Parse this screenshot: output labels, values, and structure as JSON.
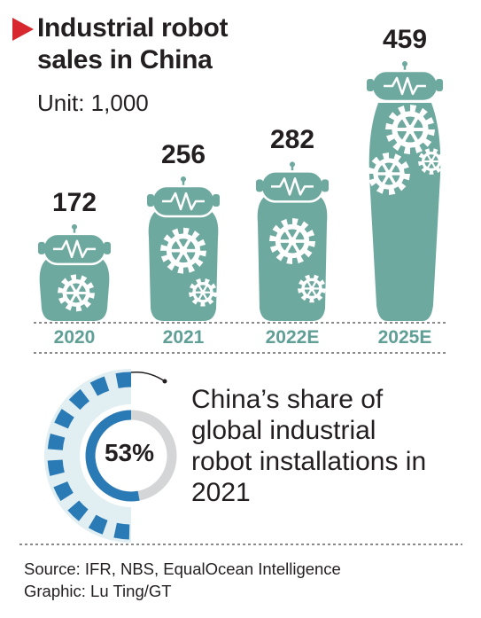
{
  "header": {
    "title_line1": "Industrial robot",
    "title_line2": "sales in China",
    "unit": "Unit: 1,000"
  },
  "chart_data": {
    "type": "bar",
    "title": "Industrial robot sales in China",
    "unit": "Unit: 1,000",
    "categories": [
      "2020",
      "2021",
      "2022E",
      "2025E"
    ],
    "values": [
      172,
      256,
      282,
      459
    ],
    "value_labels": [
      "172",
      "256",
      "282",
      "459"
    ],
    "ylim": [
      0,
      459
    ],
    "grid": false,
    "legend": "none"
  },
  "share": {
    "percent": 53,
    "percent_label": "53%",
    "line1": "China’s share of",
    "line2": "global industrial",
    "line3": "robot installations in",
    "line4": "2021"
  },
  "footer": {
    "source": "Source: IFR, NBS, EqualOcean Intelligence",
    "graphic": "Graphic: Lu Ting/GT"
  },
  "colors": {
    "robot": "#6ea99f",
    "robot_dark": "#5f9f95",
    "accent_red": "#d7282f",
    "ring_blue": "#2a7ab5",
    "ring_light": "#e1eef2",
    "ring_gray": "#d4d5d6"
  }
}
